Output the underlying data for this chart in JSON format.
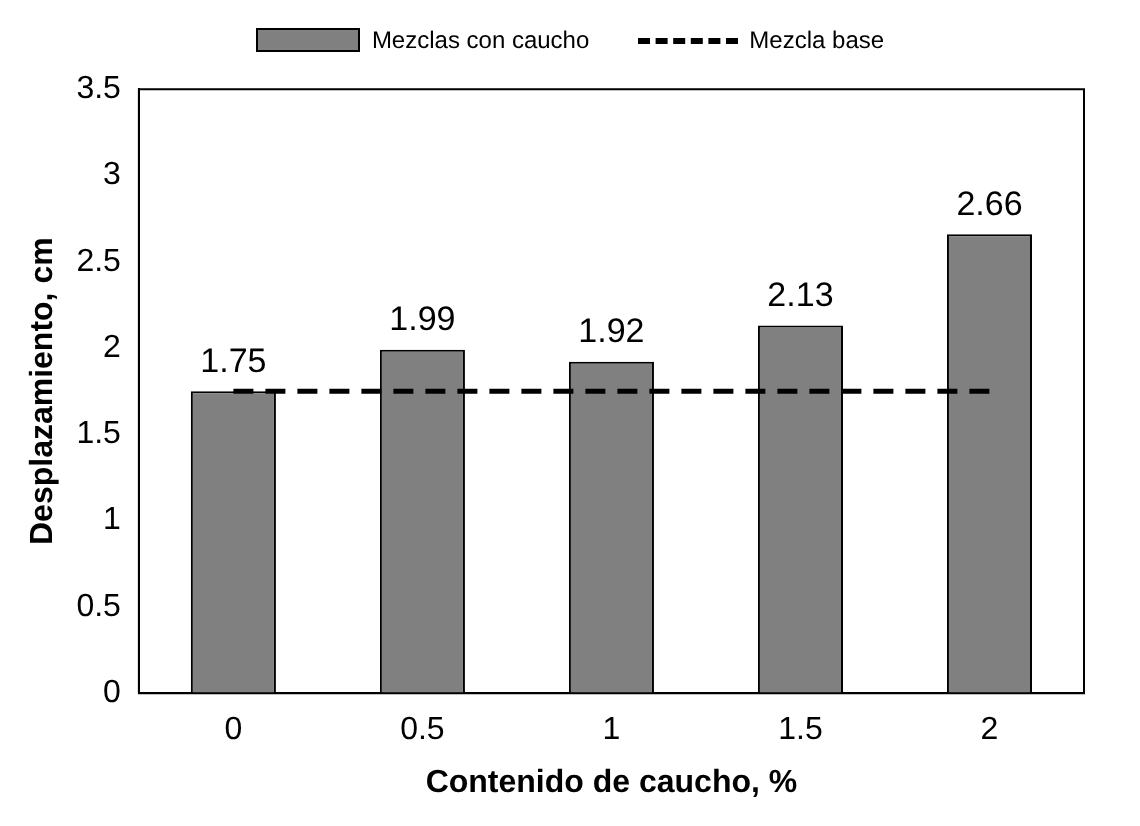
{
  "chart_data": {
    "type": "bar",
    "xlabel": "Contenido de caucho, %",
    "ylabel": "Desplazamiento, cm",
    "categories": [
      "0",
      "0.5",
      "1",
      "1.5",
      "2"
    ],
    "series": [
      {
        "name": "Mezclas con caucho",
        "color": "#808080",
        "values": [
          1.75,
          1.99,
          1.92,
          2.13,
          2.66
        ],
        "value_labels": [
          "1.75",
          "1.99",
          "1.92",
          "2.13",
          "2.66"
        ]
      },
      {
        "name": "Mezcla base",
        "type": "line",
        "color": "#000000",
        "line_style": "dashed",
        "marker": "none",
        "values": [
          1.75,
          1.75,
          1.75,
          1.75,
          1.75
        ]
      }
    ],
    "ylim": [
      0,
      3.5
    ],
    "yticks": [
      0,
      0.5,
      1,
      1.5,
      2,
      2.5,
      3,
      3.5
    ],
    "grid": false,
    "legend": "top"
  }
}
